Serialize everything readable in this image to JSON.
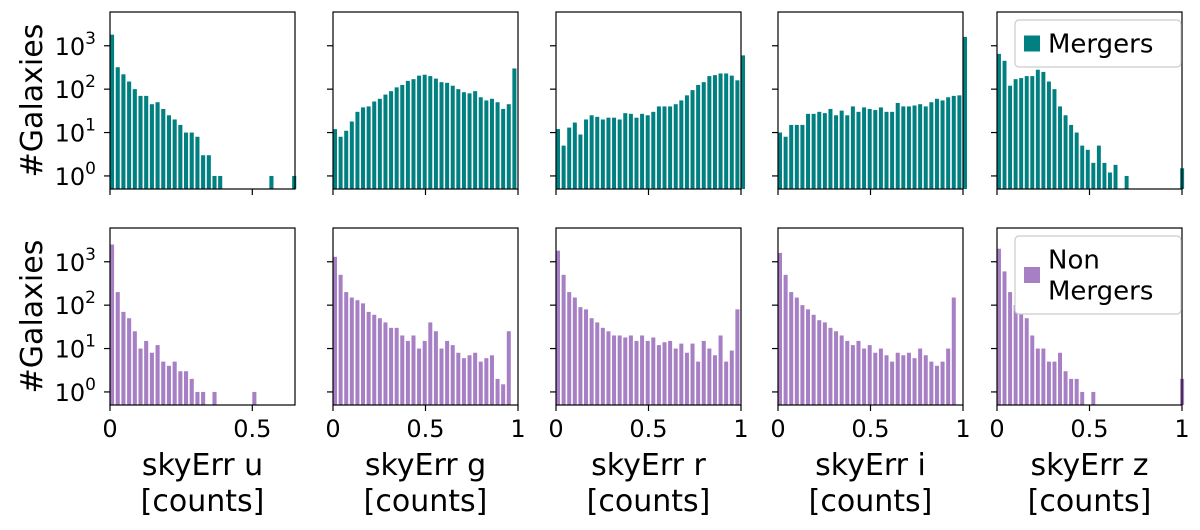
{
  "chart_data": {
    "type": "bar",
    "layout": "2 rows x 5 columns of histograms, shared log y-axis",
    "ylabel": "#Galaxies",
    "yscale": "log",
    "ylim": [
      0.5,
      6000
    ],
    "ytick_labels": [
      {
        "base": "10",
        "exp": "0",
        "value": 1
      },
      {
        "base": "10",
        "exp": "1",
        "value": 10
      },
      {
        "base": "10",
        "exp": "2",
        "value": 100
      },
      {
        "base": "10",
        "exp": "3",
        "value": 1000
      }
    ],
    "colors": {
      "Mergers": "#008080",
      "Non Mergers": "#a67fc4"
    },
    "rows": [
      {
        "name": "Mergers",
        "legend_lines": [
          "Mergers"
        ],
        "panels": [
          {
            "band": "u",
            "xlim": [
              0,
              0.65
            ],
            "bin_width": 0.02,
            "values": [
              1800,
              320,
              220,
              150,
              100,
              70,
              70,
              45,
              50,
              35,
              25,
              20,
              15,
              10,
              10,
              8,
              3,
              3,
              1,
              1,
              0,
              0,
              0,
              0,
              0,
              0,
              0,
              0,
              1,
              0,
              0,
              0,
              1
            ]
          },
          {
            "band": "g",
            "xlim": [
              0,
              1
            ],
            "bin_width": 0.0303,
            "values": [
              12,
              8,
              11,
              18,
              30,
              38,
              40,
              52,
              60,
              75,
              90,
              110,
              125,
              155,
              170,
              205,
              215,
              200,
              175,
              145,
              140,
              120,
              100,
              85,
              80,
              90,
              65,
              55,
              60,
              50,
              35,
              45,
              300
            ]
          },
          {
            "band": "r",
            "xlim": [
              0,
              1
            ],
            "bin_width": 0.0303,
            "values": [
              12,
              5,
              13,
              17,
              9,
              20,
              25,
              23,
              20,
              22,
              22,
              20,
              28,
              27,
              22,
              27,
              25,
              30,
              40,
              40,
              40,
              45,
              55,
              72,
              95,
              125,
              145,
              200,
              210,
              230,
              230,
              205,
              160,
              600
            ]
          },
          {
            "band": "i",
            "xlim": [
              0,
              1
            ],
            "bin_width": 0.0303,
            "values": [
              10,
              8,
              15,
              15,
              15,
              27,
              27,
              30,
              28,
              35,
              25,
              32,
              25,
              40,
              30,
              38,
              35,
              33,
              38,
              30,
              30,
              48,
              40,
              40,
              42,
              45,
              40,
              50,
              60,
              55,
              65,
              70,
              72,
              1600
            ]
          },
          {
            "band": "z",
            "xlim": [
              0,
              1
            ],
            "bin_width": 0.03,
            "values": [
              650,
              450,
              120,
              170,
              180,
              200,
              200,
              280,
              250,
              150,
              100,
              40,
              25,
              15,
              10,
              5,
              4,
              2,
              5,
              2,
              1.2,
              1.8,
              0,
              1,
              0,
              0,
              0,
              0,
              0,
              0,
              0,
              0,
              0,
              1.5
            ]
          }
        ]
      },
      {
        "name": "Non Mergers",
        "legend_lines": [
          "Non",
          "Mergers"
        ],
        "panels": [
          {
            "band": "u",
            "xlim": [
              0,
              0.65
            ],
            "bin_width": 0.02,
            "values": [
              2500,
              200,
              70,
              50,
              25,
              10,
              15,
              8,
              12,
              5,
              4,
              5,
              3,
              3,
              2,
              1,
              1,
              0,
              1,
              0,
              0,
              0,
              0,
              0,
              0,
              1,
              0,
              0,
              0,
              0,
              0,
              0,
              0
            ]
          },
          {
            "band": "g",
            "xlim": [
              0,
              1
            ],
            "bin_width": 0.0303,
            "values": [
              1300,
              500,
              200,
              150,
              130,
              110,
              70,
              60,
              50,
              40,
              30,
              30,
              20,
              15,
              20,
              10,
              15,
              40,
              25,
              10,
              15,
              12,
              8,
              6,
              7,
              8,
              5,
              6,
              7,
              2,
              1.5,
              25
            ]
          },
          {
            "band": "r",
            "xlim": [
              0,
              1
            ],
            "bin_width": 0.0303,
            "values": [
              1800,
              500,
              200,
              150,
              90,
              80,
              50,
              40,
              30,
              25,
              20,
              20,
              18,
              20,
              15,
              20,
              15,
              18,
              12,
              14,
              15,
              10,
              13,
              8,
              13,
              5,
              15,
              10,
              7,
              20,
              5,
              9,
              80
            ]
          },
          {
            "band": "i",
            "xlim": [
              0,
              1
            ],
            "bin_width": 0.0303,
            "values": [
              1600,
              500,
              200,
              150,
              100,
              80,
              60,
              45,
              40,
              30,
              25,
              20,
              15,
              12,
              15,
              10,
              12,
              8,
              10,
              7,
              5,
              8,
              7,
              8,
              6,
              10,
              7,
              5,
              4,
              5,
              10,
              150
            ]
          },
          {
            "band": "z",
            "xlim": [
              0,
              1
            ],
            "bin_width": 0.03,
            "values": [
              2000,
              600,
              200,
              100,
              70,
              50,
              20,
              10,
              10,
              5,
              5,
              8,
              3,
              2,
              2,
              1,
              0,
              1,
              0,
              0,
              0,
              0,
              0,
              0,
              0,
              0,
              0,
              0,
              0,
              0,
              0,
              0,
              0,
              2
            ]
          }
        ]
      }
    ],
    "xlabels": [
      {
        "band": "u",
        "line1": "skyErr u",
        "line2": "[counts]"
      },
      {
        "band": "g",
        "line1": "skyErr g",
        "line2": "[counts]"
      },
      {
        "band": "r",
        "line1": "skyErr r",
        "line2": "[counts]"
      },
      {
        "band": "i",
        "line1": "skyErr i",
        "line2": "[counts]"
      },
      {
        "band": "z",
        "line1": "skyErr z",
        "line2": "[counts]"
      }
    ],
    "xticks": [
      {
        "band": "u",
        "ticks": [
          {
            "value": 0,
            "label": "0"
          },
          {
            "value": 0.5,
            "label": "0.5"
          }
        ]
      },
      {
        "band": "g",
        "ticks": [
          {
            "value": 0,
            "label": "0"
          },
          {
            "value": 0.5,
            "label": "0.5"
          },
          {
            "value": 1,
            "label": "1"
          }
        ]
      },
      {
        "band": "r",
        "ticks": [
          {
            "value": 0,
            "label": "0"
          },
          {
            "value": 0.5,
            "label": "0.5"
          },
          {
            "value": 1,
            "label": "1"
          }
        ]
      },
      {
        "band": "i",
        "ticks": [
          {
            "value": 0,
            "label": "0"
          },
          {
            "value": 0.5,
            "label": "0.5"
          },
          {
            "value": 1,
            "label": "1"
          }
        ]
      },
      {
        "band": "z",
        "ticks": [
          {
            "value": 0,
            "label": "0"
          },
          {
            "value": 0.5,
            "label": "0.5"
          },
          {
            "value": 1,
            "label": "1"
          }
        ]
      }
    ]
  }
}
